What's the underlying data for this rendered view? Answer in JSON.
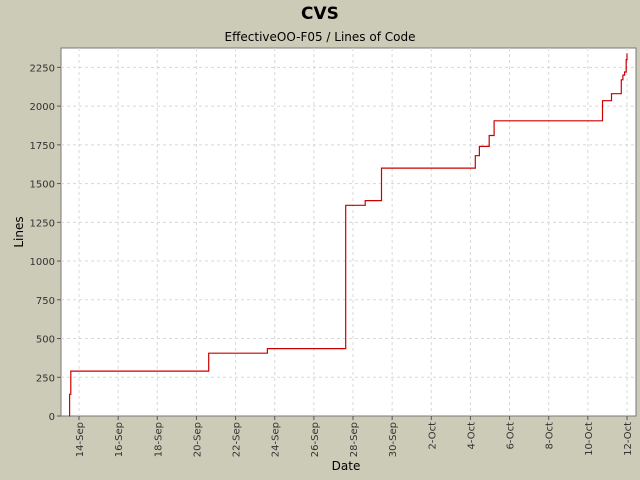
{
  "chart_data": {
    "type": "line",
    "title": "CVS",
    "subtitle": "EffectiveOO-F05 / Lines of Code",
    "xlabel": "Date",
    "ylabel": "Lines",
    "ylim": [
      0,
      2375
    ],
    "yticks": [
      0,
      250,
      500,
      750,
      1000,
      1250,
      1500,
      1750,
      2000,
      2250
    ],
    "xtick_labels": [
      "14-Sep",
      "16-Sep",
      "18-Sep",
      "20-Sep",
      "22-Sep",
      "24-Sep",
      "26-Sep",
      "28-Sep",
      "30-Sep",
      "2-Oct",
      "4-Oct",
      "6-Oct",
      "8-Oct",
      "10-Oct",
      "12-Oct"
    ],
    "grid": true,
    "series": [
      {
        "color": "#cc0000",
        "step": true,
        "points": [
          [
            "2004-09-13 12:00",
            0
          ],
          [
            "2004-09-13 12:30",
            140
          ],
          [
            "2004-09-13 14:00",
            290
          ],
          [
            "2004-09-20 14:00",
            290
          ],
          [
            "2004-09-20 15:00",
            405
          ],
          [
            "2004-09-23 14:00",
            405
          ],
          [
            "2004-09-23 15:00",
            435
          ],
          [
            "2004-09-27 14:00",
            435
          ],
          [
            "2004-09-27 15:00",
            1360
          ],
          [
            "2004-09-28 14:00",
            1360
          ],
          [
            "2004-09-28 15:00",
            1390
          ],
          [
            "2004-09-29 10:00",
            1390
          ],
          [
            "2004-09-29 11:00",
            1600
          ],
          [
            "2004-10-04 05:00",
            1600
          ],
          [
            "2004-10-04 06:00",
            1680
          ],
          [
            "2004-10-04 10:00",
            1680
          ],
          [
            "2004-10-04 11:00",
            1740
          ],
          [
            "2004-10-04 22:00",
            1740
          ],
          [
            "2004-10-04 23:00",
            1810
          ],
          [
            "2004-10-05 04:00",
            1810
          ],
          [
            "2004-10-05 05:00",
            1905
          ],
          [
            "2004-10-10 17:00",
            1905
          ],
          [
            "2004-10-10 18:00",
            2035
          ],
          [
            "2004-10-11 04:00",
            2035
          ],
          [
            "2004-10-11 05:00",
            2080
          ],
          [
            "2004-10-11 16:00",
            2080
          ],
          [
            "2004-10-11 17:00",
            2170
          ],
          [
            "2004-10-11 19:00",
            2200
          ],
          [
            "2004-10-11 21:00",
            2220
          ],
          [
            "2004-10-11 23:00",
            2300
          ],
          [
            "2004-10-12 00:00",
            2340
          ]
        ]
      }
    ]
  }
}
